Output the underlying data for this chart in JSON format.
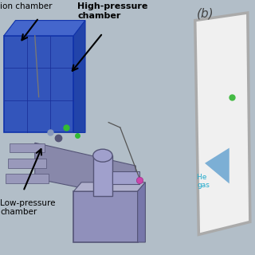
{
  "bg_color": "#b2bec8",
  "panel_b_bg": "#bcc8d2",
  "panel_b_inner_bg": "#f5f5f5",
  "panel_b_border_color": "#b0b8c0",
  "label_b_color": "#555555",
  "label_ion_chamber": "ion chamber",
  "label_high_pressure": "High-pressure\nchamber",
  "label_low_pressure": "Low-pressure\nchamber",
  "label_he_gas": "He \ngas",
  "label_he_color": "#22aacc",
  "dot_magenta_color": "#cc44aa",
  "dot_green_color": "#44bb44",
  "blue_box_color": "#3355bb",
  "blue_box_edge": "#1133aa",
  "machine_gray": "#8888aa",
  "machine_light": "#aaaacc",
  "machine_dark": "#555577",
  "low_box_color": "#9090bb",
  "low_box_light": "#b0b0cc",
  "pipe_color": "#9999bb",
  "cyl_color": "#a0a0cc",
  "figsize": [
    3.2,
    3.2
  ],
  "dpi": 100
}
